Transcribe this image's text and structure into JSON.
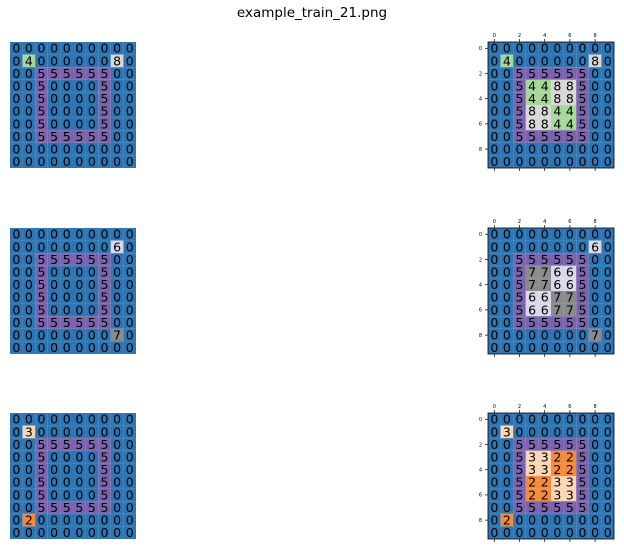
{
  "title": "example_train_21.png",
  "palette": {
    "0": "#2e75b4",
    "2": "#f28c3c",
    "3": "#fcd6b4",
    "4": "#a6d89a",
    "5": "#7b64ad",
    "6": "#d9d9ea",
    "7": "#8b8b8b",
    "8": "#d8d8d8"
  },
  "axis": {
    "x_ticks": [
      "0",
      "2",
      "4",
      "6",
      "8"
    ],
    "y_ticks": [
      "0",
      "2",
      "4",
      "6",
      "8"
    ]
  },
  "pairs": [
    {
      "input": [
        [
          0,
          0,
          0,
          0,
          0,
          0,
          0,
          0,
          0,
          0
        ],
        [
          0,
          4,
          0,
          0,
          0,
          0,
          0,
          0,
          8,
          0
        ],
        [
          0,
          0,
          5,
          5,
          5,
          5,
          5,
          5,
          0,
          0
        ],
        [
          0,
          0,
          5,
          0,
          0,
          0,
          0,
          5,
          0,
          0
        ],
        [
          0,
          0,
          5,
          0,
          0,
          0,
          0,
          5,
          0,
          0
        ],
        [
          0,
          0,
          5,
          0,
          0,
          0,
          0,
          5,
          0,
          0
        ],
        [
          0,
          0,
          5,
          0,
          0,
          0,
          0,
          5,
          0,
          0
        ],
        [
          0,
          0,
          5,
          5,
          5,
          5,
          5,
          5,
          0,
          0
        ],
        [
          0,
          0,
          0,
          0,
          0,
          0,
          0,
          0,
          0,
          0
        ],
        [
          0,
          0,
          0,
          0,
          0,
          0,
          0,
          0,
          0,
          0
        ]
      ],
      "output": [
        [
          0,
          0,
          0,
          0,
          0,
          0,
          0,
          0,
          0,
          0
        ],
        [
          0,
          4,
          0,
          0,
          0,
          0,
          0,
          0,
          8,
          0
        ],
        [
          0,
          0,
          5,
          5,
          5,
          5,
          5,
          5,
          0,
          0
        ],
        [
          0,
          0,
          5,
          4,
          4,
          8,
          8,
          5,
          0,
          0
        ],
        [
          0,
          0,
          5,
          4,
          4,
          8,
          8,
          5,
          0,
          0
        ],
        [
          0,
          0,
          5,
          8,
          8,
          4,
          4,
          5,
          0,
          0
        ],
        [
          0,
          0,
          5,
          8,
          8,
          4,
          4,
          5,
          0,
          0
        ],
        [
          0,
          0,
          5,
          5,
          5,
          5,
          5,
          5,
          0,
          0
        ],
        [
          0,
          0,
          0,
          0,
          0,
          0,
          0,
          0,
          0,
          0
        ],
        [
          0,
          0,
          0,
          0,
          0,
          0,
          0,
          0,
          0,
          0
        ]
      ]
    },
    {
      "input": [
        [
          0,
          0,
          0,
          0,
          0,
          0,
          0,
          0,
          0,
          0
        ],
        [
          0,
          0,
          0,
          0,
          0,
          0,
          0,
          0,
          6,
          0
        ],
        [
          0,
          0,
          5,
          5,
          5,
          5,
          5,
          5,
          0,
          0
        ],
        [
          0,
          0,
          5,
          0,
          0,
          0,
          0,
          5,
          0,
          0
        ],
        [
          0,
          0,
          5,
          0,
          0,
          0,
          0,
          5,
          0,
          0
        ],
        [
          0,
          0,
          5,
          0,
          0,
          0,
          0,
          5,
          0,
          0
        ],
        [
          0,
          0,
          5,
          0,
          0,
          0,
          0,
          5,
          0,
          0
        ],
        [
          0,
          0,
          5,
          5,
          5,
          5,
          5,
          5,
          0,
          0
        ],
        [
          0,
          0,
          0,
          0,
          0,
          0,
          0,
          0,
          7,
          0
        ],
        [
          0,
          0,
          0,
          0,
          0,
          0,
          0,
          0,
          0,
          0
        ]
      ],
      "output": [
        [
          0,
          0,
          0,
          0,
          0,
          0,
          0,
          0,
          0,
          0
        ],
        [
          0,
          0,
          0,
          0,
          0,
          0,
          0,
          0,
          6,
          0
        ],
        [
          0,
          0,
          5,
          5,
          5,
          5,
          5,
          5,
          0,
          0
        ],
        [
          0,
          0,
          5,
          7,
          7,
          6,
          6,
          5,
          0,
          0
        ],
        [
          0,
          0,
          5,
          7,
          7,
          6,
          6,
          5,
          0,
          0
        ],
        [
          0,
          0,
          5,
          6,
          6,
          7,
          7,
          5,
          0,
          0
        ],
        [
          0,
          0,
          5,
          6,
          6,
          7,
          7,
          5,
          0,
          0
        ],
        [
          0,
          0,
          5,
          5,
          5,
          5,
          5,
          5,
          0,
          0
        ],
        [
          0,
          0,
          0,
          0,
          0,
          0,
          0,
          0,
          7,
          0
        ],
        [
          0,
          0,
          0,
          0,
          0,
          0,
          0,
          0,
          0,
          0
        ]
      ]
    },
    {
      "input": [
        [
          0,
          0,
          0,
          0,
          0,
          0,
          0,
          0,
          0,
          0
        ],
        [
          0,
          3,
          0,
          0,
          0,
          0,
          0,
          0,
          0,
          0
        ],
        [
          0,
          0,
          5,
          5,
          5,
          5,
          5,
          5,
          0,
          0
        ],
        [
          0,
          0,
          5,
          0,
          0,
          0,
          0,
          5,
          0,
          0
        ],
        [
          0,
          0,
          5,
          0,
          0,
          0,
          0,
          5,
          0,
          0
        ],
        [
          0,
          0,
          5,
          0,
          0,
          0,
          0,
          5,
          0,
          0
        ],
        [
          0,
          0,
          5,
          0,
          0,
          0,
          0,
          5,
          0,
          0
        ],
        [
          0,
          0,
          5,
          5,
          5,
          5,
          5,
          5,
          0,
          0
        ],
        [
          0,
          2,
          0,
          0,
          0,
          0,
          0,
          0,
          0,
          0
        ],
        [
          0,
          0,
          0,
          0,
          0,
          0,
          0,
          0,
          0,
          0
        ]
      ],
      "output": [
        [
          0,
          0,
          0,
          0,
          0,
          0,
          0,
          0,
          0,
          0
        ],
        [
          0,
          3,
          0,
          0,
          0,
          0,
          0,
          0,
          0,
          0
        ],
        [
          0,
          0,
          5,
          5,
          5,
          5,
          5,
          5,
          0,
          0
        ],
        [
          0,
          0,
          5,
          3,
          3,
          2,
          2,
          5,
          0,
          0
        ],
        [
          0,
          0,
          5,
          3,
          3,
          2,
          2,
          5,
          0,
          0
        ],
        [
          0,
          0,
          5,
          2,
          2,
          3,
          3,
          5,
          0,
          0
        ],
        [
          0,
          0,
          5,
          2,
          2,
          3,
          3,
          5,
          0,
          0
        ],
        [
          0,
          0,
          5,
          5,
          5,
          5,
          5,
          5,
          0,
          0
        ],
        [
          0,
          2,
          0,
          0,
          0,
          0,
          0,
          0,
          0,
          0
        ],
        [
          0,
          0,
          0,
          0,
          0,
          0,
          0,
          0,
          0,
          0
        ]
      ]
    }
  ]
}
